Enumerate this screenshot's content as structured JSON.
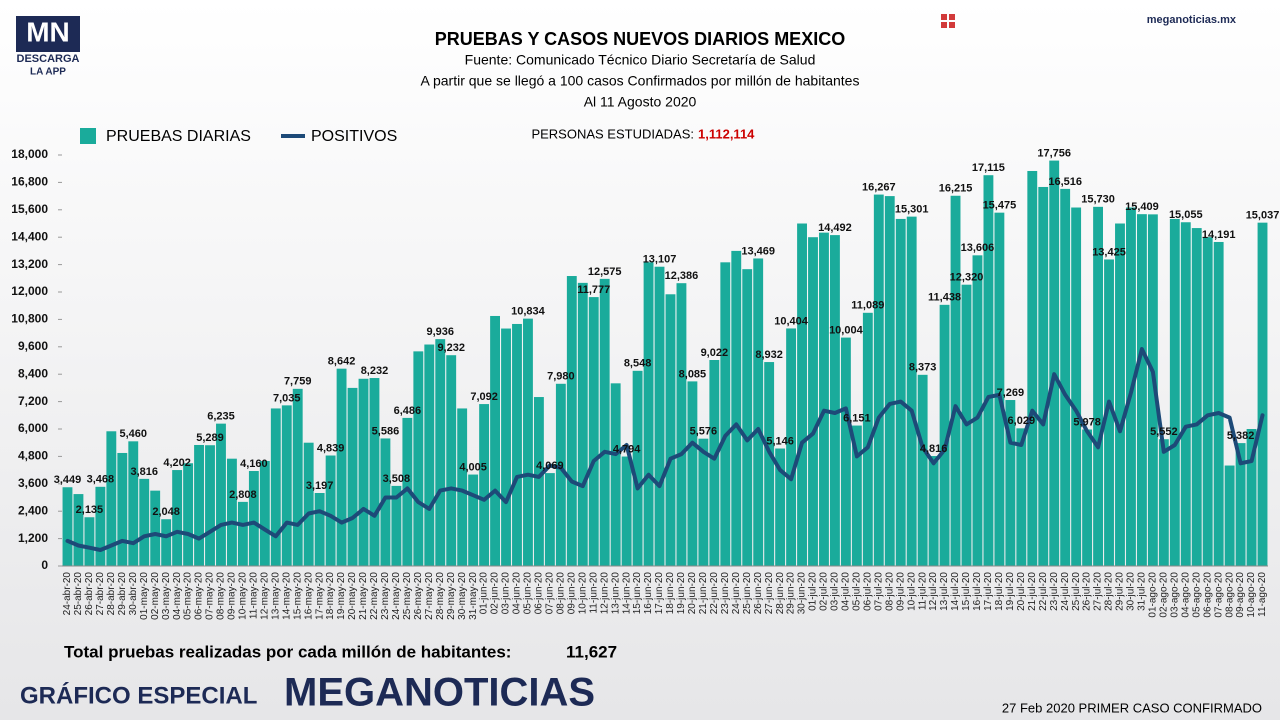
{
  "header": {
    "logo": "MN",
    "logo_sub": "DESCARGA",
    "logo_app": "LA APP",
    "site": "meganoticias.mx"
  },
  "footer": {
    "total_label": "Total pruebas realizadas por cada millón de habitantes:",
    "total_value": "11,627",
    "special": "GRÁFICO ESPECIAL",
    "brand": "MEGANOTICIAS",
    "note": "27 Feb 2020 PRIMER CASO CONFIRMADO"
  },
  "chart_data": {
    "type": "bar",
    "title": "PRUEBAS Y CASOS NUEVOS DIARIOS MEXICO",
    "subtitle": [
      "Fuente: Comunicado Técnico Diario Secretaría de Salud",
      "A partir que se llegó a 100 casos Confirmados por millón de habitantes",
      "Al 11 Agosto 2020"
    ],
    "annotation_label": "PERSONAS ESTUDIADAS:",
    "annotation_value": "1,112,114",
    "categories": [
      "24-abr-20",
      "25-abr-20",
      "26-abr-20",
      "27-abr-20",
      "28-abr-20",
      "29-abr-20",
      "30-abr-20",
      "01-may-20",
      "02-may-20",
      "03-may-20",
      "04-may-20",
      "05-may-20",
      "06-may-20",
      "07-may-20",
      "08-may-20",
      "09-may-20",
      "10-may-20",
      "11-may-20",
      "12-may-20",
      "13-may-20",
      "14-may-20",
      "15-may-20",
      "16-may-20",
      "17-may-20",
      "18-may-20",
      "19-may-20",
      "20-may-20",
      "21-may-20",
      "22-may-20",
      "23-may-20",
      "24-may-20",
      "25-may-20",
      "26-may-20",
      "27-may-20",
      "28-may-20",
      "29-may-20",
      "30-may-20",
      "31-may-20",
      "01-jun-20",
      "02-jun-20",
      "03-jun-20",
      "04-jun-20",
      "05-jun-20",
      "06-jun-20",
      "07-jun-20",
      "08-jun-20",
      "09-jun-20",
      "10-jun-20",
      "11-jun-20",
      "12-jun-20",
      "13-jun-20",
      "14-jun-20",
      "15-jun-20",
      "16-jun-20",
      "17-jun-20",
      "18-jun-20",
      "19-jun-20",
      "20-jun-20",
      "21-jun-20",
      "22-jun-20",
      "23-jun-20",
      "24-jun-20",
      "25-jun-20",
      "26-jun-20",
      "27-jun-20",
      "28-jun-20",
      "29-jun-20",
      "30-jun-20",
      "01-jul-20",
      "02-jul-20",
      "03-jul-20",
      "04-jul-20",
      "05-jul-20",
      "06-jul-20",
      "07-jul-20",
      "08-jul-20",
      "09-jul-20",
      "10-jul-20",
      "11-jul-20",
      "12-jul-20",
      "13-jul-20",
      "14-jul-20",
      "15-jul-20",
      "16-jul-20",
      "17-jul-20",
      "18-jul-20",
      "19-jul-20",
      "20-jul-20",
      "21-jul-20",
      "22-jul-20",
      "23-jul-20",
      "24-jul-20",
      "25-jul-20",
      "26-jul-20",
      "27-jul-20",
      "28-jul-20",
      "29-jul-20",
      "30-jul-20",
      "31-jul-20",
      "01-ago-20",
      "02-ago-20",
      "03-ago-20",
      "04-ago-20",
      "05-ago-20",
      "06-ago-20",
      "07-ago-20",
      "08-ago-20",
      "09-ago-20",
      "10-ago-20",
      "11-ago-20"
    ],
    "series": [
      {
        "name": "PRUEBAS DIARIAS",
        "type": "bar",
        "color": "#1aab9b",
        "values": [
          3449,
          3150,
          2135,
          3468,
          5900,
          4950,
          5460,
          3816,
          3300,
          2048,
          4202,
          4500,
          5300,
          5289,
          6235,
          4700,
          2808,
          4160,
          4600,
          6900,
          7035,
          7759,
          5400,
          3197,
          4839,
          8642,
          7800,
          8200,
          8232,
          5586,
          3508,
          6486,
          9400,
          9700,
          9936,
          9232,
          6900,
          4005,
          7092,
          10950,
          10400,
          10600,
          10834,
          7400,
          4069,
          7980,
          12700,
          12400,
          11777,
          12575,
          8000,
          4794,
          8548,
          13300,
          13107,
          11900,
          12386,
          8085,
          5576,
          9022,
          13300,
          13800,
          13000,
          13469,
          8932,
          5146,
          10404,
          15000,
          14400,
          14600,
          14492,
          10004,
          6151,
          11089,
          16267,
          16200,
          15200,
          15301,
          8373,
          4816,
          11438,
          16215,
          12320,
          13606,
          17115,
          15475,
          7269,
          6029,
          17300,
          16600,
          17756,
          16516,
          15700,
          5978,
          15730,
          13425,
          15000,
          15700,
          15409,
          15400,
          5552,
          15200,
          15055,
          14800,
          14400,
          14191,
          4400,
          5382,
          6000,
          15037
        ],
        "value_labels": [
          "3,449",
          null,
          "2,135",
          "3,468",
          null,
          null,
          "5,460",
          "3,816",
          null,
          "2,048",
          "4,202",
          null,
          null,
          "5,289",
          "6,235",
          null,
          "2,808",
          "4,160",
          null,
          null,
          "7,035",
          "7,759",
          null,
          "3,197",
          "4,839",
          "8,642",
          null,
          null,
          "8,232",
          "5,586",
          "3,508",
          "6,486",
          null,
          null,
          "9,936",
          "9,232",
          null,
          "4,005",
          "7,092",
          null,
          null,
          null,
          "10,834",
          null,
          "4,069",
          "7,980",
          null,
          null,
          "11,777",
          "12,575",
          null,
          "4,794",
          "8,548",
          null,
          "13,107",
          null,
          "12,386",
          "8,085",
          "5,576",
          "9,022",
          null,
          null,
          null,
          "13,469",
          "8,932",
          "5,146",
          "10,404",
          null,
          null,
          null,
          "14,492",
          "10,004",
          "6,151",
          "11,089",
          "16,267",
          null,
          null,
          "15,301",
          "8,373",
          "4,816",
          "11,438",
          "16,215",
          "12,320",
          "13,606",
          "17,115",
          "15,475",
          "7,269",
          "6,029",
          null,
          null,
          "17,756",
          "16,516",
          null,
          "5,978",
          "15,730",
          "13,425",
          null,
          null,
          "15,409",
          null,
          "5,552",
          null,
          "15,055",
          null,
          null,
          "14,191",
          null,
          "5,382",
          null,
          "15,037"
        ]
      },
      {
        "name": "POSITIVOS",
        "type": "line",
        "color": "#1d4a78",
        "values": [
          1100,
          900,
          800,
          700,
          900,
          1100,
          1000,
          1300,
          1400,
          1300,
          1500,
          1400,
          1200,
          1500,
          1800,
          1900,
          1800,
          1900,
          1600,
          1300,
          1900,
          1800,
          2300,
          2400,
          2200,
          1900,
          2100,
          2500,
          2200,
          3000,
          3000,
          3400,
          2800,
          2500,
          3300,
          3400,
          3300,
          3100,
          2900,
          3300,
          2800,
          3900,
          4000,
          3900,
          4400,
          4300,
          3700,
          3500,
          4600,
          5000,
          4900,
          5300,
          3400,
          4000,
          3500,
          4700,
          4900,
          5400,
          5000,
          4700,
          5700,
          6200,
          5500,
          6000,
          5000,
          4200,
          3800,
          5400,
          5800,
          6800,
          6700,
          6900,
          4800,
          5200,
          6500,
          7100,
          7200,
          6800,
          5200,
          4500,
          5100,
          7000,
          6200,
          6500,
          7400,
          7500,
          5400,
          5300,
          6800,
          6200,
          8400,
          7500,
          6800,
          5900,
          5200,
          7200,
          5900,
          7600,
          9500,
          8500,
          5000,
          5300,
          6100,
          6200,
          6600,
          6700,
          6500,
          4500,
          4600,
          6600
        ]
      }
    ],
    "ylim": [
      0,
      18000
    ],
    "yticks": [
      0,
      {
        "value": 1200,
        "label": "1,200"
      },
      {
        "value": 2400,
        "label": "2,400"
      },
      {
        "value": 3600,
        "label": "3,600"
      },
      {
        "value": 4800,
        "label": "4,800"
      },
      {
        "value": 6000,
        "label": "6,000"
      },
      {
        "value": 7200,
        "label": "7,200"
      },
      {
        "value": 8400,
        "label": "8,400"
      },
      {
        "value": 9600,
        "label": "9,600"
      },
      {
        "value": 10800,
        "label": "10,800"
      },
      {
        "value": 12000,
        "label": "12,000"
      },
      {
        "value": 13200,
        "label": "13,200"
      },
      {
        "value": 14400,
        "label": "14,400"
      },
      {
        "value": 15600,
        "label": "15,600"
      },
      {
        "value": 16800,
        "label": "16,800"
      },
      {
        "value": 18000,
        "label": "18,000"
      }
    ],
    "grid": false
  }
}
